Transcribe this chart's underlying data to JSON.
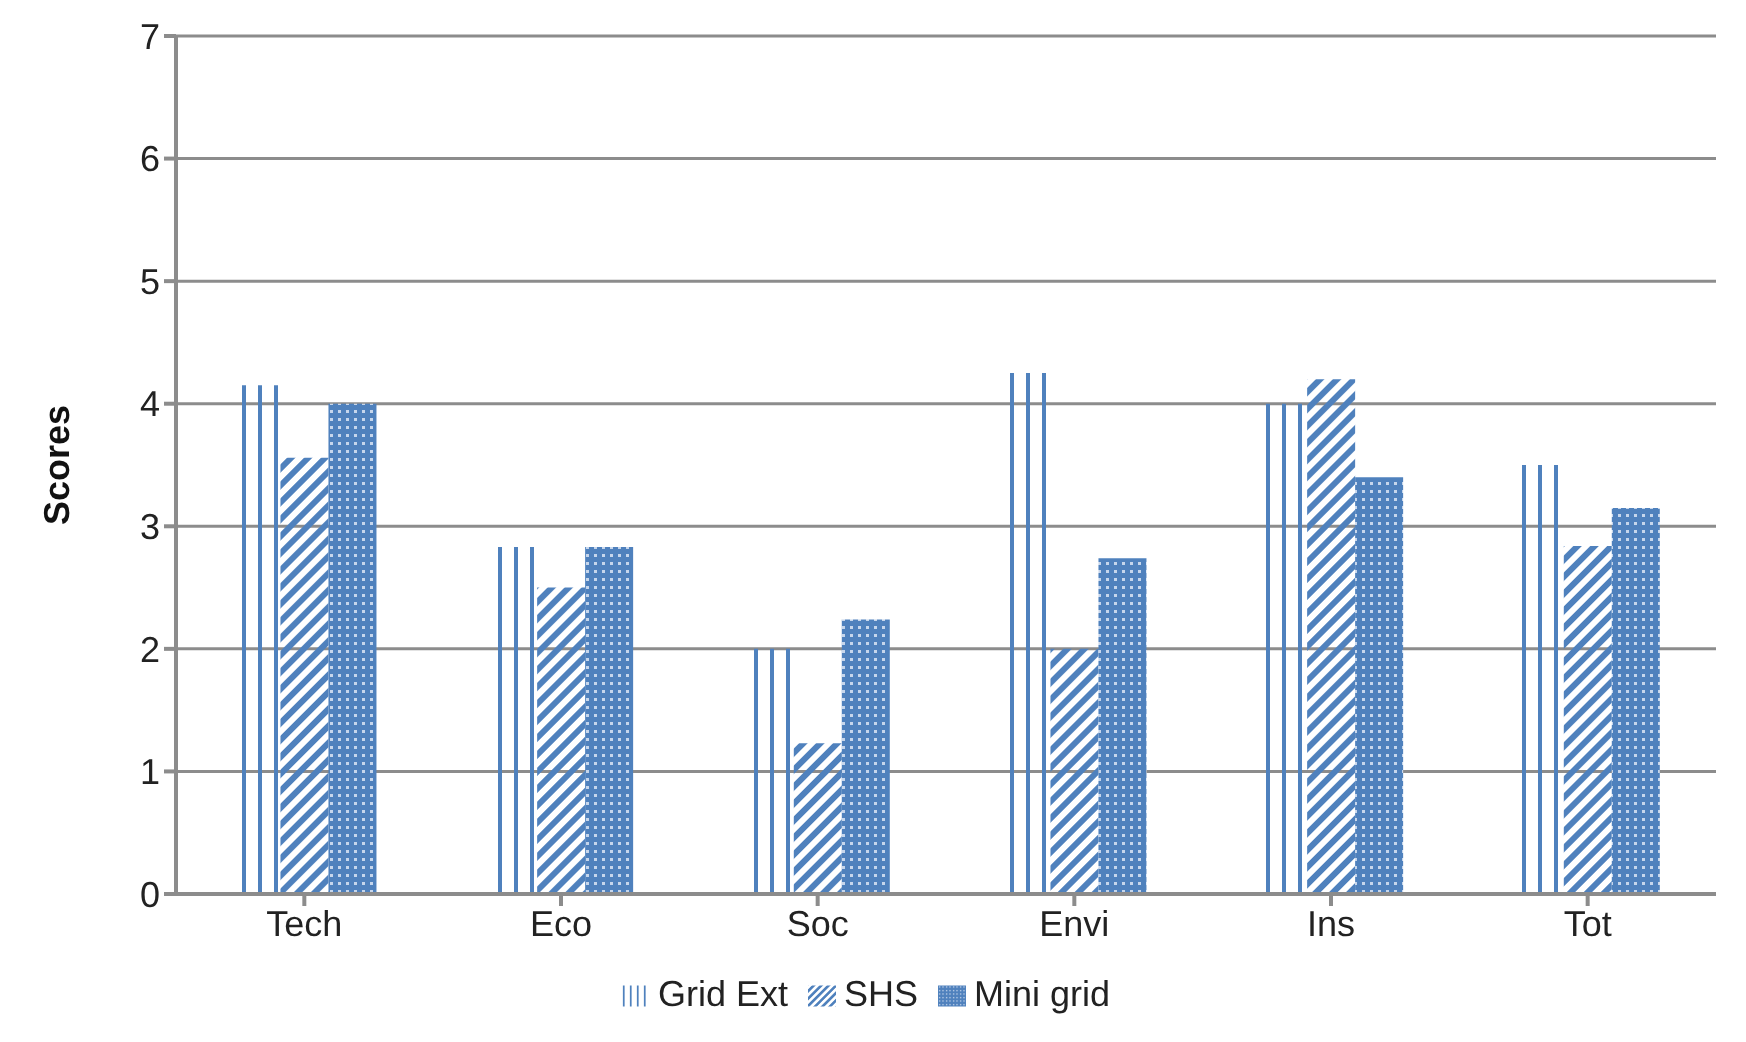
{
  "chart_data": {
    "type": "bar",
    "ylabel": "Scores",
    "categories": [
      "Tech",
      "Eco",
      "Soc",
      "Envi",
      "Ins",
      "Tot"
    ],
    "series": [
      {
        "name": "Grid Ext",
        "color": "#4f81bd",
        "values": [
          4.15,
          2.83,
          2.0,
          4.25,
          4.0,
          3.5
        ]
      },
      {
        "name": "SHS",
        "color": "#4f81bd",
        "values": [
          3.56,
          2.5,
          1.23,
          2.0,
          4.2,
          2.84
        ]
      },
      {
        "name": "Mini grid",
        "color": "#4f81bd",
        "values": [
          4.0,
          2.83,
          2.24,
          2.74,
          3.4,
          3.15
        ]
      }
    ],
    "ylim": [
      0,
      7
    ],
    "yticks": [
      0,
      1,
      2,
      3,
      4,
      5,
      6,
      7
    ],
    "grid": "y",
    "legend": "bottom"
  }
}
